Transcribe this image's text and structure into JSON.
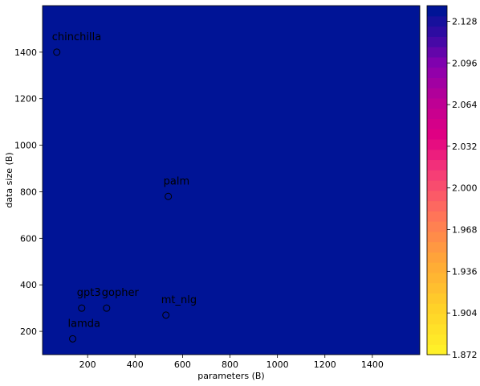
{
  "chart_data": {
    "type": "scatter",
    "title": "",
    "xlabel": "parameters (B)",
    "ylabel": "data size (B)",
    "xlim": [
      10,
      1600
    ],
    "ylim": [
      100,
      1600
    ],
    "xticks": [
      200,
      400,
      600,
      800,
      1000,
      1200,
      1400
    ],
    "yticks": [
      200,
      400,
      600,
      800,
      1000,
      1200,
      1400
    ],
    "background": "filled contour of loss over parameters and data size",
    "points": [
      {
        "label": "chinchilla",
        "x": 70,
        "y": 1400
      },
      {
        "label": "palm",
        "x": 540,
        "y": 780
      },
      {
        "label": "gpt3",
        "x": 175,
        "y": 300
      },
      {
        "label": "gopher",
        "x": 280,
        "y": 300
      },
      {
        "label": "mt_nlg",
        "x": 530,
        "y": 270
      },
      {
        "label": "lamda",
        "x": 137,
        "y": 168
      }
    ],
    "colorbar": {
      "min": 1.872,
      "max": 2.14,
      "ticks": [
        "1.872",
        "1.904",
        "1.936",
        "1.968",
        "2.000",
        "2.032",
        "2.064",
        "2.096",
        "2.128"
      ],
      "colormap": "plasma_r"
    }
  }
}
